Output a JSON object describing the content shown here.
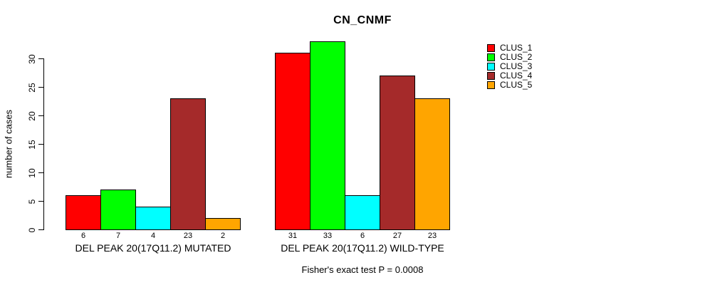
{
  "chart_data": {
    "type": "bar",
    "title": "CN_CNMF",
    "ylabel": "number of cases",
    "xlabel": "",
    "ylim": [
      0,
      33
    ],
    "yticks": [
      0,
      5,
      10,
      15,
      20,
      25,
      30
    ],
    "grid": false,
    "legend_position": "right",
    "categories": [
      "DEL PEAK 20(17Q11.2) MUTATED",
      "DEL PEAK 20(17Q11.2) WILD-TYPE"
    ],
    "series": [
      {
        "name": "CLUS_1",
        "color": "#FF0000",
        "values": [
          6,
          31
        ]
      },
      {
        "name": "CLUS_2",
        "color": "#00FF00",
        "values": [
          7,
          33
        ]
      },
      {
        "name": "CLUS_3",
        "color": "#00FFFF",
        "values": [
          4,
          6
        ]
      },
      {
        "name": "CLUS_4",
        "color": "#A52A2A",
        "values": [
          23,
          27
        ]
      },
      {
        "name": "CLUS_5",
        "color": "#FFA500",
        "values": [
          2,
          23
        ]
      }
    ],
    "bar_value_labels": [
      [
        6,
        7,
        4,
        23,
        2
      ],
      [
        31,
        33,
        6,
        27,
        23
      ]
    ],
    "annotation": "Fisher's exact test P = 0.0008"
  }
}
